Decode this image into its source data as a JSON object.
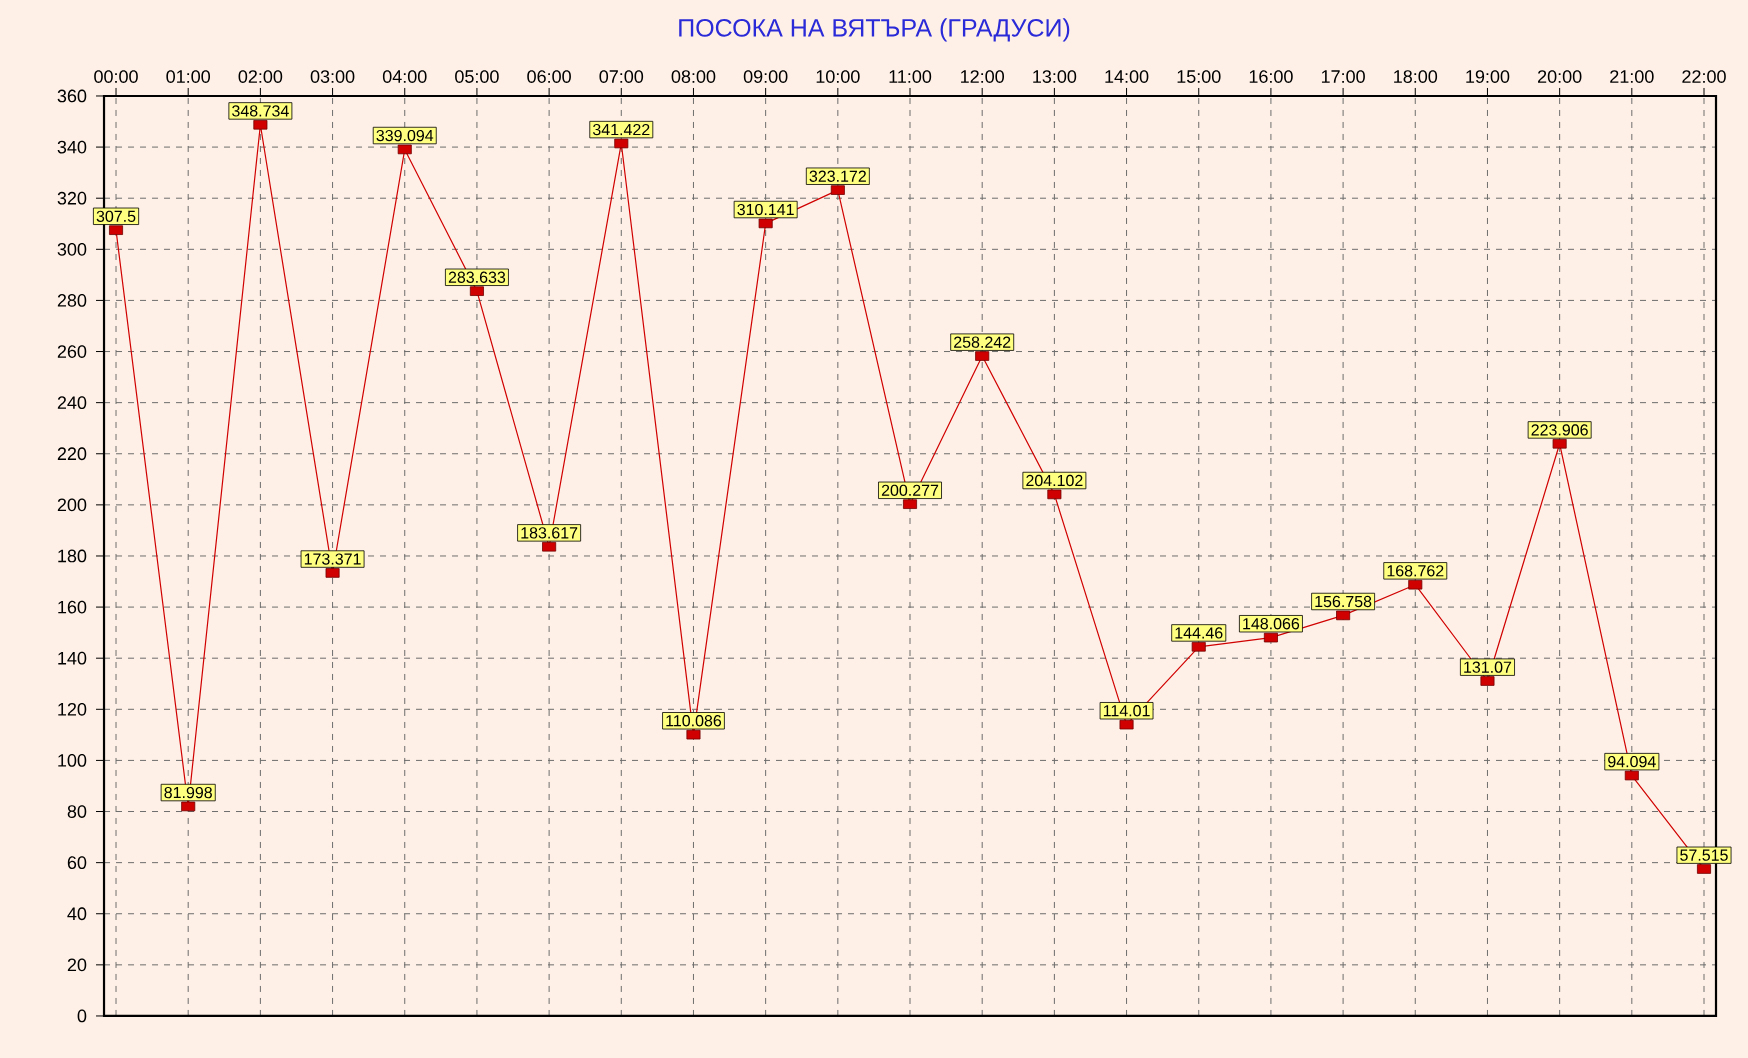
{
  "chart_data": {
    "type": "line",
    "title": "ПОСОКА НА ВЯТЪРА (ГРАДУСИ)",
    "categories": [
      "00:00",
      "01:00",
      "02:00",
      "03:00",
      "04:00",
      "05:00",
      "06:00",
      "07:00",
      "08:00",
      "09:00",
      "10:00",
      "11:00",
      "12:00",
      "13:00",
      "14:00",
      "15:00",
      "16:00",
      "17:00",
      "18:00",
      "19:00",
      "20:00",
      "21:00",
      "22:00"
    ],
    "series": [
      {
        "color": "#d00000",
        "values": [
          307.5,
          81.998,
          348.734,
          173.371,
          339.094,
          283.633,
          183.617,
          341.422,
          110.086,
          310.141,
          323.172,
          200.277,
          258.242,
          204.102,
          114.01,
          144.46,
          148.066,
          156.758,
          168.762,
          131.07,
          223.906,
          94.094,
          57.515
        ]
      }
    ],
    "ylim": [
      0,
      360
    ],
    "yticks": [
      0,
      20,
      40,
      60,
      80,
      100,
      120,
      140,
      160,
      180,
      200,
      220,
      240,
      260,
      280,
      300,
      320,
      340,
      360
    ],
    "grid": true,
    "marker": "square",
    "line_style": "solid",
    "data_labels": true
  }
}
